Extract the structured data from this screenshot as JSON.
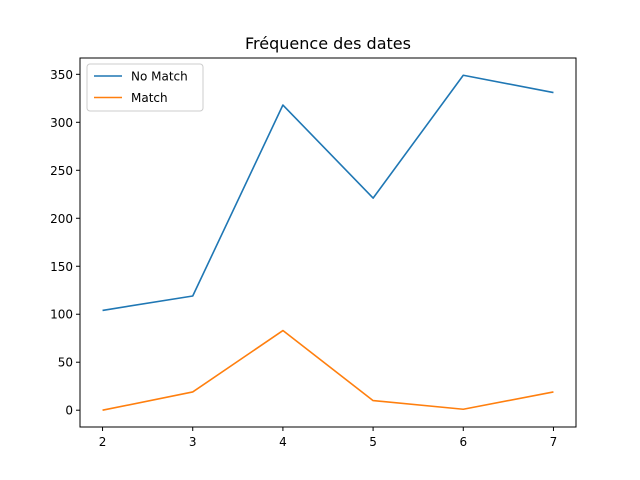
{
  "chart_data": {
    "type": "line",
    "title": "Fréquence des dates",
    "xlabel": "",
    "ylabel": "",
    "x": [
      2,
      3,
      4,
      5,
      6,
      7
    ],
    "xlim": [
      1.75,
      7.25
    ],
    "ylim": [
      -17.5,
      367
    ],
    "yticks": [
      0,
      50,
      100,
      150,
      200,
      250,
      300,
      350
    ],
    "grid": false,
    "legend_position": "top-left",
    "series": [
      {
        "name": "No Match",
        "color": "#1f77b4",
        "values": [
          104,
          119,
          318,
          221,
          349,
          331
        ]
      },
      {
        "name": "Match",
        "color": "#ff7f0e",
        "values": [
          0,
          19,
          83,
          10,
          1,
          19
        ]
      }
    ]
  }
}
